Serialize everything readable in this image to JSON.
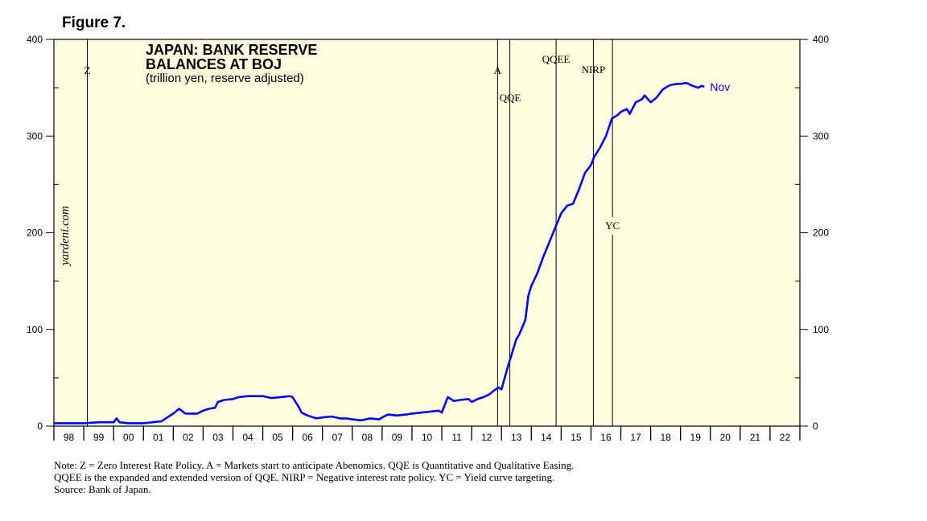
{
  "figure_label": "Figure 7.",
  "chart_data": {
    "type": "line",
    "title_lines": [
      "JAPAN: BANK RESERVE",
      "BALANCES AT BOJ"
    ],
    "subtitle": "(trillion yen, reserve adjusted)",
    "y_range": [
      0,
      400
    ],
    "y_ticks": [
      0,
      100,
      200,
      300,
      400
    ],
    "x_range": [
      1998,
      2023
    ],
    "x_categories": [
      "98",
      "99",
      "00",
      "01",
      "02",
      "03",
      "04",
      "05",
      "06",
      "07",
      "08",
      "09",
      "10",
      "11",
      "12",
      "13",
      "14",
      "15",
      "16",
      "17",
      "18",
      "19",
      "20",
      "21",
      "22"
    ],
    "watermark": "yardeni.com",
    "end_label": "Nov",
    "series_color": "#0000ff",
    "background_color": "#ffffe0",
    "annotations": [
      {
        "label": "Z",
        "x": 1999.12
      },
      {
        "label": "A",
        "x": 2012.87
      },
      {
        "label": "QQE",
        "x": 2013.28
      },
      {
        "label": "QQEE",
        "x": 2014.83
      },
      {
        "label": "NIRP",
        "x": 2016.08
      },
      {
        "label": "YC",
        "x": 2016.72
      }
    ],
    "series": [
      {
        "name": "Bank reserve balances at BOJ",
        "x": [
          1998.0,
          1998.5,
          1999.0,
          1999.5,
          2000.0,
          2000.1,
          2000.2,
          2000.5,
          2001.0,
          2001.3,
          2001.6,
          2001.8,
          2002.0,
          2002.2,
          2002.4,
          2002.6,
          2002.8,
          2003.0,
          2003.2,
          2003.4,
          2003.5,
          2003.7,
          2004.0,
          2004.2,
          2004.5,
          2004.8,
          2005.0,
          2005.3,
          2005.6,
          2005.9,
          2006.0,
          2006.2,
          2006.3,
          2006.5,
          2006.8,
          2007.0,
          2007.3,
          2007.6,
          2007.8,
          2008.0,
          2008.3,
          2008.6,
          2008.9,
          2009.0,
          2009.2,
          2009.5,
          2009.8,
          2010.0,
          2010.3,
          2010.6,
          2010.9,
          2011.0,
          2011.2,
          2011.4,
          2011.6,
          2011.9,
          2012.0,
          2012.2,
          2012.4,
          2012.6,
          2012.8,
          2012.9,
          2013.0,
          2013.2,
          2013.3,
          2013.4,
          2013.5,
          2013.6,
          2013.8,
          2013.9,
          2014.0,
          2014.2,
          2014.4,
          2014.6,
          2014.8,
          2015.0,
          2015.2,
          2015.4,
          2015.6,
          2015.8,
          2016.0,
          2016.1,
          2016.3,
          2016.5,
          2016.7,
          2016.9,
          2017.0,
          2017.2,
          2017.3,
          2017.5,
          2017.7,
          2017.8,
          2018.0,
          2018.2,
          2018.4,
          2018.6,
          2018.7,
          2018.9,
          2019.0,
          2019.2,
          2019.4,
          2019.6,
          2019.7,
          2019.8
        ],
        "values": [
          3,
          3,
          3,
          4,
          4,
          8,
          4,
          3,
          3,
          4,
          5,
          9,
          13,
          18,
          13,
          13,
          13,
          16,
          18,
          19,
          25,
          27,
          28,
          30,
          31,
          31,
          31,
          29,
          30,
          31,
          30,
          20,
          14,
          11,
          8,
          9,
          10,
          8,
          8,
          7,
          6,
          8,
          7,
          9,
          12,
          11,
          12,
          13,
          14,
          15,
          16,
          14,
          30,
          26,
          27,
          28,
          25,
          28,
          30,
          33,
          38,
          40,
          38,
          60,
          70,
          80,
          90,
          95,
          110,
          135,
          145,
          158,
          175,
          190,
          205,
          220,
          228,
          230,
          245,
          262,
          270,
          278,
          288,
          300,
          318,
          322,
          325,
          328,
          323,
          335,
          338,
          342,
          335,
          340,
          348,
          352,
          353,
          354,
          354,
          355,
          352,
          350,
          352,
          351
        ]
      }
    ]
  },
  "notes": [
    "Note: Z = Zero Interest Rate Policy. A = Markets start to anticipate Abenomics. QQE is Quantitative and Qualitative Easing.",
    "QQEE is the expanded and extended version of QQE. NIRP = Negative interest rate policy. YC = Yield curve targeting.",
    "Source: Bank of Japan."
  ]
}
